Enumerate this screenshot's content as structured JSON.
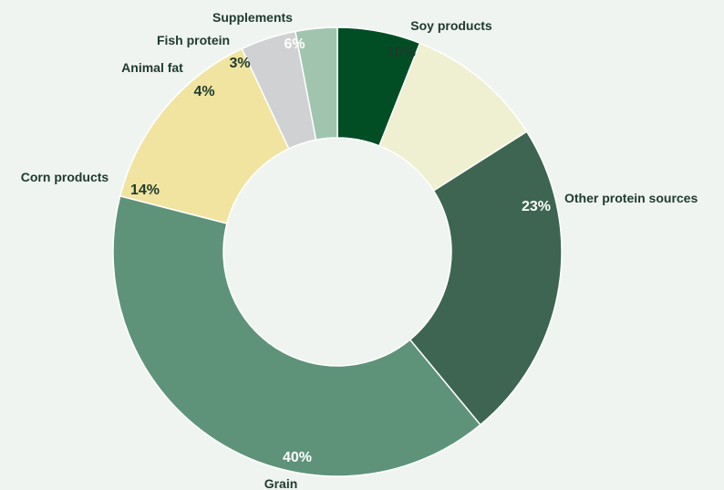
{
  "chart_data": {
    "type": "pie",
    "style": "donut",
    "title": "",
    "slices": [
      {
        "label": "Supplements",
        "value": 6,
        "value_label": "6%",
        "color": "#014e25",
        "value_color": "#ffffff"
      },
      {
        "label": "Soy products",
        "value": 10,
        "value_label": "10%",
        "color": "#eff0d1",
        "value_color": "#1e3a2d"
      },
      {
        "label": "Other protein sources",
        "value": 23,
        "value_label": "23%",
        "color": "#3d6551",
        "value_color": "#ffffff"
      },
      {
        "label": "Grain",
        "value": 40,
        "value_label": "40%",
        "color": "#5e937a",
        "value_color": "#ffffff"
      },
      {
        "label": "Corn products",
        "value": 14,
        "value_label": "14%",
        "color": "#f0e4a0",
        "value_color": "#1e3a2d"
      },
      {
        "label": "Animal fat",
        "value": 4,
        "value_label": "4%",
        "color": "#d0d1d2",
        "value_color": "#1e3a2d"
      },
      {
        "label": "Fish protein",
        "value": 3,
        "value_label": "3%",
        "color": "#a0c4ae",
        "value_color": "#1e3a2d"
      }
    ],
    "background_color": "#eff4f1",
    "legend": "none"
  }
}
